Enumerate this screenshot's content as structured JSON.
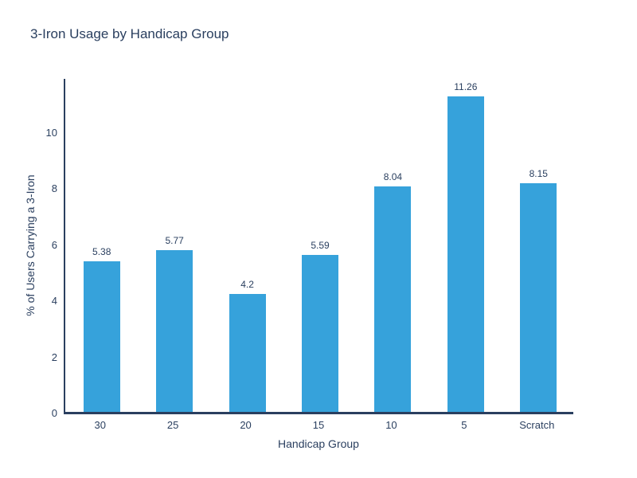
{
  "chart_data": {
    "type": "bar",
    "title": "3-Iron Usage by Handicap Group",
    "xlabel": "Handicap Group",
    "ylabel": "% of Users Carrying a 3-Iron",
    "categories": [
      "30",
      "25",
      "20",
      "15",
      "10",
      "5",
      "Scratch"
    ],
    "values": [
      5.38,
      5.77,
      4.2,
      5.59,
      8.04,
      11.26,
      8.15
    ],
    "value_labels": [
      "5.38",
      "5.77",
      "4.2",
      "5.59",
      "8.04",
      "11.26",
      "8.15"
    ],
    "yticks": [
      0,
      2,
      4,
      6,
      8,
      10
    ],
    "ylim": [
      0,
      11.93
    ],
    "grid": false,
    "legend": "none",
    "colors": {
      "bar": "#36a2db",
      "text": "#2a3f5f",
      "axis": "#2a3f5f",
      "background": "#ffffff"
    }
  }
}
